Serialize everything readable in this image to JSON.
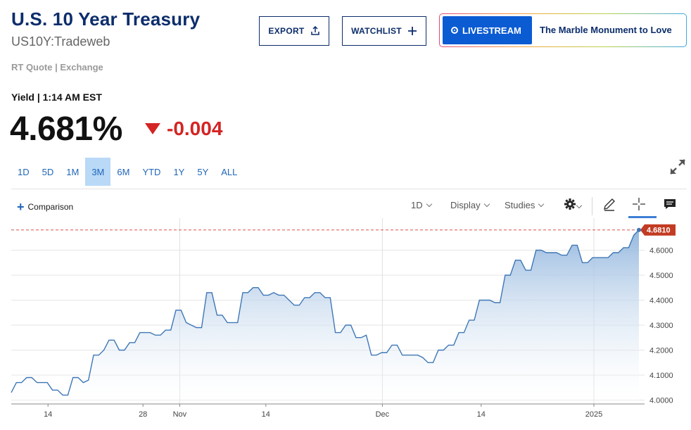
{
  "header": {
    "title": "U.S. 10 Year Treasury",
    "symbol": "US10Y:Tradeweb",
    "rt_quote": "RT Quote | Exchange"
  },
  "buttons": {
    "export": "EXPORT",
    "watchlist": "WATCHLIST"
  },
  "livestream": {
    "badge": "LIVESTREAM",
    "text": "The Marble Monument to Love"
  },
  "quote": {
    "label": "Yield | 1:14 AM EST",
    "price": "4.681%",
    "change": "-0.004"
  },
  "ranges": [
    "1D",
    "5D",
    "1M",
    "3M",
    "6M",
    "YTD",
    "1Y",
    "5Y",
    "ALL"
  ],
  "selected_range": "3M",
  "toolbar": {
    "comparison": "Comparison",
    "interval": "1D",
    "display": "Display",
    "studies": "Studies"
  },
  "colors": {
    "brand": "#0c2d6b",
    "accent": "#2066b8",
    "down": "#d42424",
    "line": "#3e77b6",
    "reference": "#d9534f"
  },
  "chart_data": {
    "type": "area",
    "x_labels": [
      "14",
      "28",
      "Nov",
      "14",
      "Dec",
      "14",
      "2025"
    ],
    "ylim": [
      3.99,
      4.7
    ],
    "y_ticks": [
      "4.6000",
      "4.5000",
      "4.4000",
      "4.3000",
      "4.2000",
      "4.1000",
      "4.0000"
    ],
    "last_value_label": "4.6810",
    "reference_line": 4.681,
    "grid": true,
    "values": [
      4.03,
      4.07,
      4.07,
      4.09,
      4.09,
      4.07,
      4.07,
      4.07,
      4.04,
      4.04,
      4.02,
      4.02,
      4.09,
      4.09,
      4.07,
      4.08,
      4.18,
      4.18,
      4.2,
      4.24,
      4.24,
      4.2,
      4.2,
      4.23,
      4.23,
      4.27,
      4.27,
      4.27,
      4.26,
      4.26,
      4.28,
      4.28,
      4.36,
      4.36,
      4.31,
      4.3,
      4.29,
      4.29,
      4.43,
      4.43,
      4.34,
      4.34,
      4.31,
      4.31,
      4.31,
      4.43,
      4.43,
      4.45,
      4.45,
      4.42,
      4.42,
      4.43,
      4.42,
      4.42,
      4.4,
      4.38,
      4.38,
      4.41,
      4.41,
      4.43,
      4.43,
      4.41,
      4.41,
      4.27,
      4.27,
      4.3,
      4.3,
      4.25,
      4.25,
      4.26,
      4.18,
      4.18,
      4.19,
      4.19,
      4.22,
      4.22,
      4.18,
      4.18,
      4.18,
      4.18,
      4.17,
      4.15,
      4.15,
      4.2,
      4.2,
      4.22,
      4.22,
      4.27,
      4.27,
      4.32,
      4.32,
      4.4,
      4.4,
      4.4,
      4.39,
      4.39,
      4.5,
      4.5,
      4.56,
      4.56,
      4.52,
      4.52,
      4.6,
      4.6,
      4.59,
      4.59,
      4.59,
      4.58,
      4.58,
      4.62,
      4.62,
      4.55,
      4.55,
      4.57,
      4.57,
      4.57,
      4.57,
      4.59,
      4.59,
      4.61,
      4.61,
      4.66,
      4.681
    ]
  }
}
